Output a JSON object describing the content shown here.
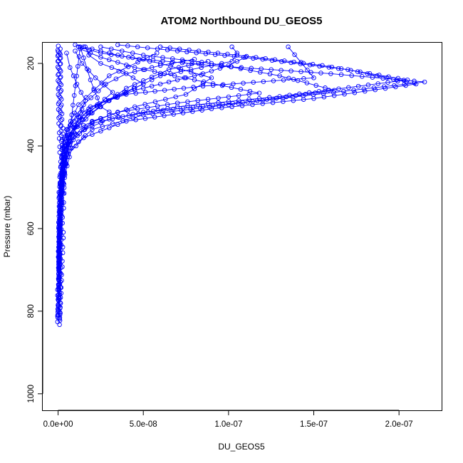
{
  "chart_data": {
    "type": "line",
    "title": "ATOM2 Northbound DU_GEOS5",
    "xlabel": "DU_GEOS5",
    "ylabel": "Pressure (mbar)",
    "xlim": [
      -9e-09,
      2.25e-07
    ],
    "ylim": [
      1040,
      150
    ],
    "y_reversed": true,
    "x_ticks": [
      0,
      5e-08,
      1e-07,
      1.5e-07,
      2e-07
    ],
    "x_tick_labels": [
      "0.0e+00",
      "5.0e-08",
      "1.0e-07",
      "1.5e-07",
      "2.0e-07"
    ],
    "y_ticks": [
      200,
      400,
      600,
      800,
      1000
    ],
    "y_tick_labels": [
      "200",
      "400",
      "600",
      "800",
      "1000"
    ],
    "series_color": "#0000ff",
    "marker": "open-circle",
    "grid": false,
    "profiles": [
      {
        "x": [
          2.2e-10,
          4e-10,
          8e-10,
          1.5e-09,
          3e-09,
          7e-09,
          2e-08,
          5e-08,
          1.2e-07,
          2.15e-07,
          1.6e-07,
          9e-08,
          5e-08,
          2.5e-08,
          1.2e-08
        ],
        "y": [
          810,
          720,
          600,
          500,
          430,
          390,
          345,
          318,
          290,
          245,
          225,
          205,
          190,
          175,
          160
        ]
      },
      {
        "x": [
          3e-10,
          6e-10,
          1.2e-09,
          2.5e-09,
          6e-09,
          1.5e-08,
          4e-08,
          9e-08,
          1.5e-07,
          2.1e-07,
          1.7e-07,
          1.2e-07,
          7e-08,
          3.5e-08
        ],
        "y": [
          800,
          700,
          590,
          490,
          420,
          380,
          340,
          310,
          285,
          250,
          215,
          190,
          170,
          155
        ]
      },
      {
        "x": [
          2.5e-10,
          5e-10,
          1e-09,
          2e-09,
          4e-09,
          1e-08,
          3e-08,
          7e-08,
          1.3e-07,
          2.05e-07,
          1.55e-07,
          1.05e-07,
          6e-08
        ],
        "y": [
          790,
          680,
          580,
          480,
          410,
          370,
          335,
          305,
          280,
          240,
          205,
          180,
          160
        ]
      },
      {
        "x": [
          4e-10,
          9e-10,
          1.8e-09,
          4e-09,
          8e-09,
          2e-08,
          5e-08,
          1e-07,
          1.62e-07,
          1.3e-07,
          9e-08,
          5e-08,
          2.5e-08
        ],
        "y": [
          770,
          660,
          560,
          470,
          405,
          360,
          325,
          300,
          265,
          230,
          200,
          180,
          160
        ]
      },
      {
        "x": [
          3.5e-10,
          7e-10,
          1.4e-09,
          3e-09,
          6e-09,
          1.5e-08,
          3.5e-08,
          7e-08,
          1.18e-07,
          8e-08,
          4.5e-08,
          2.5e-08,
          1.3e-08
        ],
        "y": [
          760,
          650,
          545,
          455,
          395,
          350,
          318,
          296,
          272,
          240,
          210,
          185,
          165
        ]
      },
      {
        "x": [
          5e-10,
          1e-09,
          2e-09,
          4e-09,
          9e-09,
          2e-08,
          4.5e-08,
          7.5e-08,
          9e-08,
          6e-08,
          3.5e-08,
          2e-08,
          1e-08
        ],
        "y": [
          745,
          640,
          535,
          445,
          385,
          340,
          305,
          275,
          235,
          200,
          180,
          165,
          155
        ]
      },
      {
        "x": [
          3e-10,
          6e-10,
          1.3e-09,
          2.8e-09,
          6e-09,
          1.3e-08,
          2.8e-08,
          5e-08,
          3.8e-08,
          2.5e-08,
          1.8e-08,
          1.6e-08
        ],
        "y": [
          735,
          630,
          525,
          440,
          380,
          330,
          290,
          250,
          220,
          200,
          180,
          160
        ]
      },
      {
        "x": [
          4e-10,
          8e-10,
          1.6e-09,
          3.5e-09,
          8e-09,
          1.8e-08,
          3.2e-08,
          2.2e-08,
          1.4e-08,
          1e-08
        ],
        "y": [
          725,
          620,
          515,
          430,
          370,
          320,
          270,
          235,
          200,
          170
        ]
      },
      {
        "x": [
          6e-10,
          1.2e-09,
          2.5e-09,
          5e-09,
          1e-08,
          1.6e-08,
          1.1e-08,
          7e-09,
          5e-09
        ],
        "y": [
          715,
          600,
          500,
          420,
          350,
          290,
          250,
          210,
          175
        ]
      },
      {
        "x": [
          3e-10,
          7e-10,
          1.5e-09,
          3e-09,
          6e-09,
          1.4e-08,
          3e-08,
          6e-08,
          1.02e-07,
          1.05e-07,
          1.02e-07
        ],
        "y": [
          710,
          590,
          495,
          420,
          375,
          335,
          290,
          230,
          195,
          175,
          160
        ]
      },
      {
        "x": [
          4e-10,
          9e-10,
          2e-09,
          4e-09,
          9e-09,
          2e-08,
          4e-08,
          6.5e-08,
          8.8e-08
        ],
        "y": [
          700,
          580,
          485,
          410,
          365,
          320,
          260,
          215,
          195
        ]
      },
      {
        "x": [
          2e-10,
          5e-10,
          1e-09,
          2.5e-09,
          5e-09,
          1.2e-08,
          3e-08,
          5.8e-08
        ],
        "y": [
          695,
          570,
          475,
          405,
          360,
          300,
          230,
          175
        ]
      },
      {
        "x": [
          5e-10,
          1e-09,
          2e-09,
          4.5e-09,
          9e-09,
          1.9e-08,
          4e-08,
          8.5e-08,
          1.5e-07,
          1.35e-07
        ],
        "y": [
          690,
          565,
          470,
          400,
          355,
          305,
          275,
          255,
          235,
          160
        ]
      },
      {
        "x": [
          1e-09,
          1e-09,
          1.3e-08,
          1.9e-08,
          2.5e-08,
          3.5e-08
        ],
        "y": [
          760,
          560,
          160,
          240,
          305,
          330
        ]
      },
      {
        "x": [
          3e-10,
          6e-10,
          1.2e-09,
          2.6e-09,
          5.5e-09,
          1.3e-08,
          2.8e-08,
          4.5e-08,
          6.5e-08,
          8.5e-08,
          1e-07,
          1.1e-07
        ],
        "y": [
          680,
          560,
          470,
          405,
          360,
          320,
          290,
          265,
          245,
          225,
          205,
          185
        ]
      },
      {
        "x": [
          4e-10,
          8e-10,
          1.7e-09,
          3.5e-09,
          7e-09,
          1.5e-08,
          2.8e-08,
          4e-08,
          6e-08,
          8e-08
        ],
        "y": [
          670,
          555,
          465,
          400,
          350,
          300,
          250,
          225,
          205,
          190
        ]
      }
    ],
    "noise_points": [
      {
        "x": 2e-10,
        "y": 812
      },
      {
        "x": 4e-10,
        "y": 802
      },
      {
        "x": 3e-10,
        "y": 795
      },
      {
        "x": 6e-10,
        "y": 784
      },
      {
        "x": 5e-10,
        "y": 772
      },
      {
        "x": 8e-10,
        "y": 760
      },
      {
        "x": 2e-10,
        "y": 748
      },
      {
        "x": 1.1e-09,
        "y": 736
      },
      {
        "x": 7e-10,
        "y": 722
      },
      {
        "x": 1.4e-09,
        "y": 705
      },
      {
        "x": 9e-10,
        "y": 688
      },
      {
        "x": 1.8e-09,
        "y": 672
      },
      {
        "x": 6e-10,
        "y": 655
      },
      {
        "x": 2.1e-09,
        "y": 638
      },
      {
        "x": 1.2e-09,
        "y": 620
      },
      {
        "x": 2.4e-09,
        "y": 602
      },
      {
        "x": 8e-10,
        "y": 585
      },
      {
        "x": 1.9e-09,
        "y": 566
      },
      {
        "x": 1.4e-09,
        "y": 548
      },
      {
        "x": 2.6e-09,
        "y": 530
      },
      {
        "x": 1e-09,
        "y": 512
      },
      {
        "x": 2.9e-09,
        "y": 494
      },
      {
        "x": 1.6e-09,
        "y": 475
      },
      {
        "x": 3.2e-09,
        "y": 456
      },
      {
        "x": 2e-09,
        "y": 438
      },
      {
        "x": 3.6e-09,
        "y": 420
      },
      {
        "x": 1.5e-09,
        "y": 402
      },
      {
        "x": 2.8e-09,
        "y": 385
      },
      {
        "x": 1.2e-09,
        "y": 368
      },
      {
        "x": 2.2e-09,
        "y": 350
      },
      {
        "x": 9e-10,
        "y": 332
      },
      {
        "x": 1.6e-09,
        "y": 315
      },
      {
        "x": 7e-10,
        "y": 298
      },
      {
        "x": 1.3e-09,
        "y": 280
      },
      {
        "x": 6e-10,
        "y": 262
      },
      {
        "x": 1.1e-09,
        "y": 245
      },
      {
        "x": 5e-10,
        "y": 228
      },
      {
        "x": 9e-10,
        "y": 212
      },
      {
        "x": 4e-10,
        "y": 195
      },
      {
        "x": 8e-10,
        "y": 180
      },
      {
        "x": 3e-10,
        "y": 168
      },
      {
        "x": 6e-10,
        "y": 158
      }
    ]
  }
}
